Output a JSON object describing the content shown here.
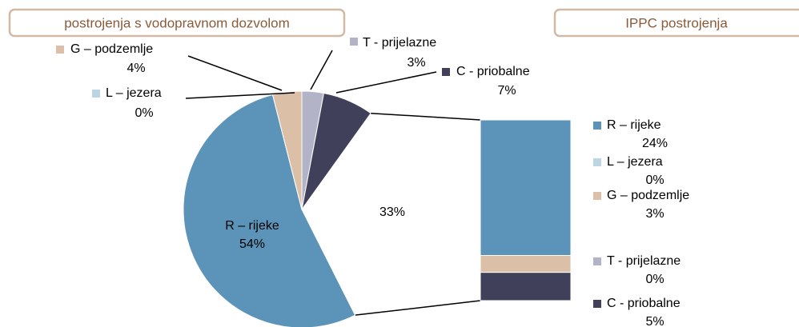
{
  "chart_data": [
    {
      "type": "pie",
      "title": "postrojenja s vodopravnom dozvolom",
      "categories": [
        "T - prijelazne",
        "C - priobalne",
        null,
        "R – rijeke",
        "L – jezera",
        "G – podzemlje"
      ],
      "values": [
        3,
        7,
        33,
        54,
        0,
        4
      ],
      "value_labels": [
        "3%",
        "7%",
        "33%",
        "54%",
        "0%",
        "4%"
      ],
      "colors": [
        "#b3b3c8",
        "#40405a",
        "#ffffff",
        "#5b94b8",
        "#bcd5e3",
        "#dcbfa7"
      ]
    },
    {
      "type": "bar",
      "title": "IPPC postrojenja",
      "stacked": true,
      "series": [
        {
          "name": "R – rijeke",
          "color": "#5b94b8",
          "values": [
            24
          ],
          "value_labels": [
            "24%"
          ]
        },
        {
          "name": "L – jezera",
          "color": "#bcd5e3",
          "values": [
            0
          ],
          "value_labels": [
            "0%"
          ]
        },
        {
          "name": "G – podzemlje",
          "color": "#dcbfa7",
          "values": [
            3
          ],
          "value_labels": [
            "3%"
          ]
        },
        {
          "name": "T - prijelazne",
          "color": "#b3b3c8",
          "values": [
            0
          ],
          "value_labels": [
            "0%"
          ]
        },
        {
          "name": "C - priobalne",
          "color": "#40405a",
          "values": [
            5
          ],
          "value_labels": [
            "5%"
          ]
        }
      ]
    }
  ]
}
